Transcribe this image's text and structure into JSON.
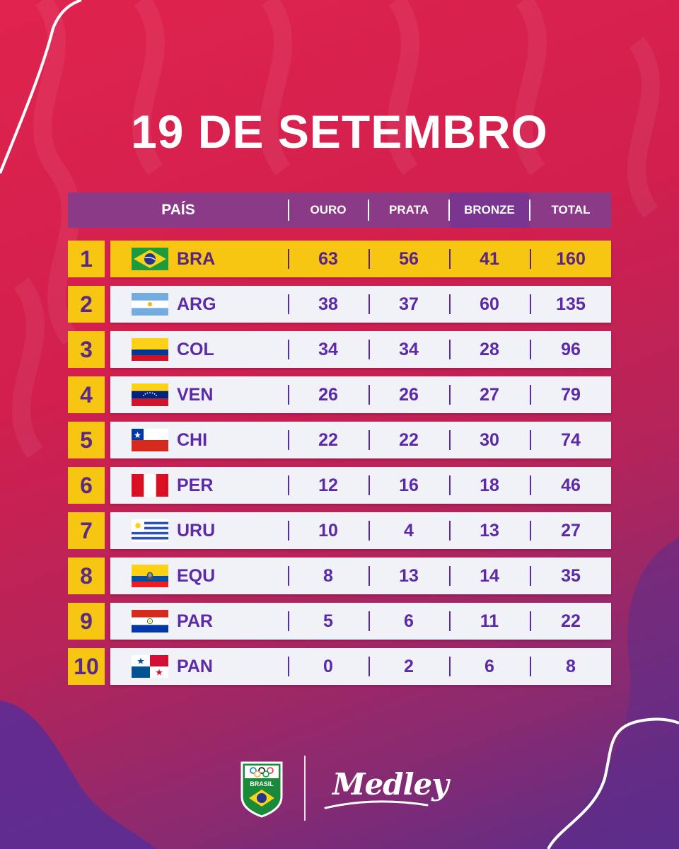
{
  "title": "19 DE SETEMBRO",
  "header": {
    "country": "PAÍS",
    "gold": "OURO",
    "silver": "PRATA",
    "bronze": "BRONZE",
    "total": "TOTAL"
  },
  "colors": {
    "accent_yellow": "#f6c612",
    "text_purple": "#5b2aa8",
    "header_purple": "#8a3a86",
    "row_bg": "#f1f1f8"
  },
  "rows": [
    {
      "rank": "1",
      "code": "BRA",
      "flag": "brazil-flag",
      "gold": "63",
      "silver": "56",
      "bronze": "41",
      "total": "160"
    },
    {
      "rank": "2",
      "code": "ARG",
      "flag": "argentina-flag",
      "gold": "38",
      "silver": "37",
      "bronze": "60",
      "total": "135"
    },
    {
      "rank": "3",
      "code": "COL",
      "flag": "colombia-flag",
      "gold": "34",
      "silver": "34",
      "bronze": "28",
      "total": "96"
    },
    {
      "rank": "4",
      "code": "VEN",
      "flag": "venezuela-flag",
      "gold": "26",
      "silver": "26",
      "bronze": "27",
      "total": "79"
    },
    {
      "rank": "5",
      "code": "CHI",
      "flag": "chile-flag",
      "gold": "22",
      "silver": "22",
      "bronze": "30",
      "total": "74"
    },
    {
      "rank": "6",
      "code": "PER",
      "flag": "peru-flag",
      "gold": "12",
      "silver": "16",
      "bronze": "18",
      "total": "46"
    },
    {
      "rank": "7",
      "code": "URU",
      "flag": "uruguay-flag",
      "gold": "10",
      "silver": "4",
      "bronze": "13",
      "total": "27"
    },
    {
      "rank": "8",
      "code": "EQU",
      "flag": "ecuador-flag",
      "gold": "8",
      "silver": "13",
      "bronze": "14",
      "total": "35"
    },
    {
      "rank": "9",
      "code": "PAR",
      "flag": "paraguay-flag",
      "gold": "5",
      "silver": "6",
      "bronze": "11",
      "total": "22"
    },
    {
      "rank": "10",
      "code": "PAN",
      "flag": "panama-flag",
      "gold": "0",
      "silver": "2",
      "bronze": "6",
      "total": "8"
    }
  ],
  "footer": {
    "badge_text": "BRASIL",
    "sponsor": "Medley"
  }
}
